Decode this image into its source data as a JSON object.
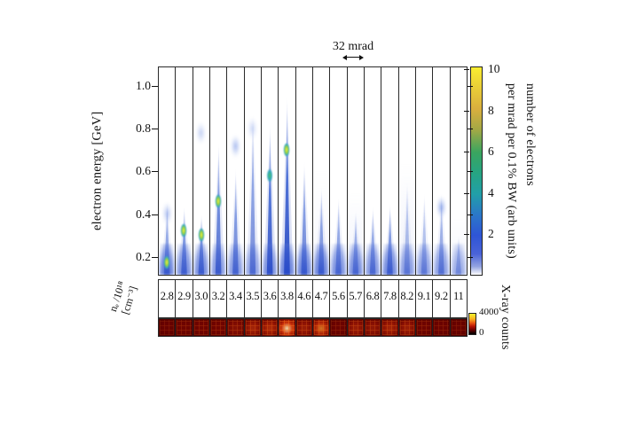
{
  "figure": {
    "scale_annotation": "32 mrad",
    "y_axis": {
      "label": "electron energy [GeV]",
      "ticks": [
        {
          "label": "1.0",
          "value": 1.0
        },
        {
          "label": "0.8",
          "value": 0.8
        },
        {
          "label": "0.6",
          "value": 0.6
        },
        {
          "label": "0.4",
          "value": 0.4
        },
        {
          "label": "0.2",
          "value": 0.2
        }
      ]
    },
    "density_axis": {
      "label_line1": "nₑ /10¹⁸",
      "label_line2": "[cm⁻³]"
    },
    "electron_colorbar": {
      "label_line1": "number of electrons",
      "label_line2": "per mrad per 0.1% BW  (arb units)",
      "ticks": [
        {
          "label": "10",
          "value": 10
        },
        {
          "label": "8",
          "value": 8
        },
        {
          "label": "6",
          "value": 6
        },
        {
          "label": "4",
          "value": 4
        },
        {
          "label": "2",
          "value": 2
        }
      ]
    },
    "xray_colorbar": {
      "label": "X-ray counts",
      "max_label": "4000",
      "min_label": "0"
    }
  },
  "chart_data": {
    "type": "heatmap",
    "description": "Angle-resolved electron energy spectra (one vertical panel per shot) versus plasma electron density, with corresponding X-ray detector images below; each panel is 32 mrad wide.",
    "x_axis": {
      "label": "nₑ /10¹⁸ [cm⁻³]",
      "categories": [
        "2.8",
        "2.9",
        "3.0",
        "3.2",
        "3.4",
        "3.5",
        "3.6",
        "3.8",
        "4.6",
        "4.7",
        "5.6",
        "5.7",
        "6.8",
        "7.8",
        "8.2",
        "9.1",
        "9.2",
        "11"
      ]
    },
    "y_axis": {
      "label": "electron energy [GeV]",
      "tick_values": [
        0.2,
        0.4,
        0.6,
        0.8,
        1.0
      ],
      "range_gev": [
        0.113,
        1.09
      ]
    },
    "angular_scale": {
      "label": "32 mrad",
      "panel_width_mrad": 32
    },
    "color_axis": {
      "label": "number of electrons per mrad per 0.1% BW (arb units)",
      "tick_values": [
        2,
        4,
        6,
        8,
        10
      ],
      "range": [
        0,
        10.15
      ]
    },
    "xray_color_axis": {
      "label": "X-ray counts",
      "range": [
        0,
        4000
      ]
    },
    "energy_axis_range": [
      0.113,
      1.09
    ],
    "colorbar_max": 10.15,
    "panels": [
      {
        "density": "2.8",
        "peak_gev": 0.46,
        "intensity": 0.5,
        "base": 0.9,
        "core_gev": 0.17,
        "core_color": "yellow",
        "blob_gev": 0.4,
        "blob_intensity": 0.45,
        "haze": 0,
        "xray_rel": 0.15,
        "xray_counts_est": 600
      },
      {
        "density": "2.9",
        "peak_gev": 0.44,
        "intensity": 0.6,
        "base": 0.75,
        "core_gev": 0.32,
        "core_color": "yellow",
        "blob_gev": 0,
        "blob_intensity": 0,
        "haze": 0,
        "xray_rel": 0.25,
        "xray_counts_est": 1000
      },
      {
        "density": "3.0",
        "peak_gev": 0.4,
        "intensity": 0.65,
        "base": 0.75,
        "core_gev": 0.3,
        "core_color": "yellow",
        "blob_gev": 0.78,
        "blob_intensity": 0.35,
        "haze": 0,
        "xray_rel": 0.3,
        "xray_counts_est": 1200
      },
      {
        "density": "3.2",
        "peak_gev": 0.74,
        "intensity": 0.7,
        "base": 0.65,
        "core_gev": 0.46,
        "core_color": "yellow",
        "blob_gev": 0,
        "blob_intensity": 0,
        "haze": 0,
        "xray_rel": 0.3,
        "xray_counts_est": 1200
      },
      {
        "density": "3.4",
        "peak_gev": 0.62,
        "intensity": 0.6,
        "base": 0.65,
        "core_gev": 0,
        "core_color": "",
        "blob_gev": 0.72,
        "blob_intensity": 0.5,
        "haze": 0,
        "xray_rel": 0.35,
        "xray_counts_est": 1400
      },
      {
        "density": "3.5",
        "peak_gev": 0.88,
        "intensity": 0.55,
        "base": 0.6,
        "core_gev": 0,
        "core_color": "",
        "blob_gev": 0.8,
        "blob_intensity": 0.3,
        "haze": 0,
        "xray_rel": 0.5,
        "xray_counts_est": 2000
      },
      {
        "density": "3.6",
        "peak_gev": 0.83,
        "intensity": 0.85,
        "base": 0.7,
        "core_gev": 0.58,
        "core_color": "green",
        "blob_gev": 0,
        "blob_intensity": 0,
        "haze": 0,
        "xray_rel": 0.55,
        "xray_counts_est": 2200
      },
      {
        "density": "3.8",
        "peak_gev": 0.96,
        "intensity": 0.9,
        "base": 0.8,
        "core_gev": 0.7,
        "core_color": "yellow",
        "blob_gev": 0,
        "blob_intensity": 0,
        "haze": 0,
        "xray_rel": 0.95,
        "xray_counts_est": 3800
      },
      {
        "density": "4.6",
        "peak_gev": 0.65,
        "intensity": 0.6,
        "base": 0.85,
        "core_gev": 0,
        "core_color": "",
        "blob_gev": 0,
        "blob_intensity": 0,
        "haze": 0,
        "xray_rel": 0.45,
        "xray_counts_est": 1800
      },
      {
        "density": "4.7",
        "peak_gev": 0.53,
        "intensity": 0.55,
        "base": 0.85,
        "core_gev": 0,
        "core_color": "",
        "blob_gev": 0,
        "blob_intensity": 0,
        "haze": 0.2,
        "xray_rel": 0.75,
        "xray_counts_est": 3000
      },
      {
        "density": "5.6",
        "peak_gev": 0.48,
        "intensity": 0.5,
        "base": 0.75,
        "core_gev": 0,
        "core_color": "",
        "blob_gev": 0,
        "blob_intensity": 0,
        "haze": 0,
        "xray_rel": 0.2,
        "xray_counts_est": 800
      },
      {
        "density": "5.7",
        "peak_gev": 0.42,
        "intensity": 0.45,
        "base": 0.75,
        "core_gev": 0,
        "core_color": "",
        "blob_gev": 0,
        "blob_intensity": 0,
        "haze": 0.3,
        "xray_rel": 0.45,
        "xray_counts_est": 1800
      },
      {
        "density": "6.8",
        "peak_gev": 0.44,
        "intensity": 0.5,
        "base": 0.7,
        "core_gev": 0,
        "core_color": "",
        "blob_gev": 0,
        "blob_intensity": 0,
        "haze": 0,
        "xray_rel": 0.4,
        "xray_counts_est": 1600
      },
      {
        "density": "7.8",
        "peak_gev": 0.45,
        "intensity": 0.6,
        "base": 0.8,
        "core_gev": 0,
        "core_color": "",
        "blob_gev": 0,
        "blob_intensity": 0,
        "haze": 0,
        "xray_rel": 0.5,
        "xray_counts_est": 2000
      },
      {
        "density": "8.2",
        "peak_gev": 0.56,
        "intensity": 0.35,
        "base": 0.65,
        "core_gev": 0,
        "core_color": "",
        "blob_gev": 0,
        "blob_intensity": 0,
        "haze": 0.3,
        "xray_rel": 0.45,
        "xray_counts_est": 1800
      },
      {
        "density": "9.1",
        "peak_gev": 0.5,
        "intensity": 0.35,
        "base": 0.65,
        "core_gev": 0,
        "core_color": "",
        "blob_gev": 0,
        "blob_intensity": 0,
        "haze": 0,
        "xray_rel": 0.25,
        "xray_counts_est": 1000
      },
      {
        "density": "9.2",
        "peak_gev": 0.5,
        "intensity": 0.45,
        "base": 0.65,
        "core_gev": 0,
        "core_color": "",
        "blob_gev": 0.43,
        "blob_intensity": 0.6,
        "haze": 0,
        "xray_rel": 0.2,
        "xray_counts_est": 800
      },
      {
        "density": "11",
        "peak_gev": 0.3,
        "intensity": 0.3,
        "base": 0.5,
        "core_gev": 0,
        "core_color": "",
        "blob_gev": 0,
        "blob_intensity": 0,
        "haze": 0.25,
        "xray_rel": 0.15,
        "xray_counts_est": 600
      }
    ],
    "colors": {
      "spectrum_low": "#2e55d6",
      "spectrum_mid": "#219fa8",
      "spectrum_high": "#f9ed30",
      "xray_low": "#000000",
      "xray_mid": "#e85510",
      "xray_high": "#f5f32c",
      "frame": "#2a2a2a"
    }
  }
}
